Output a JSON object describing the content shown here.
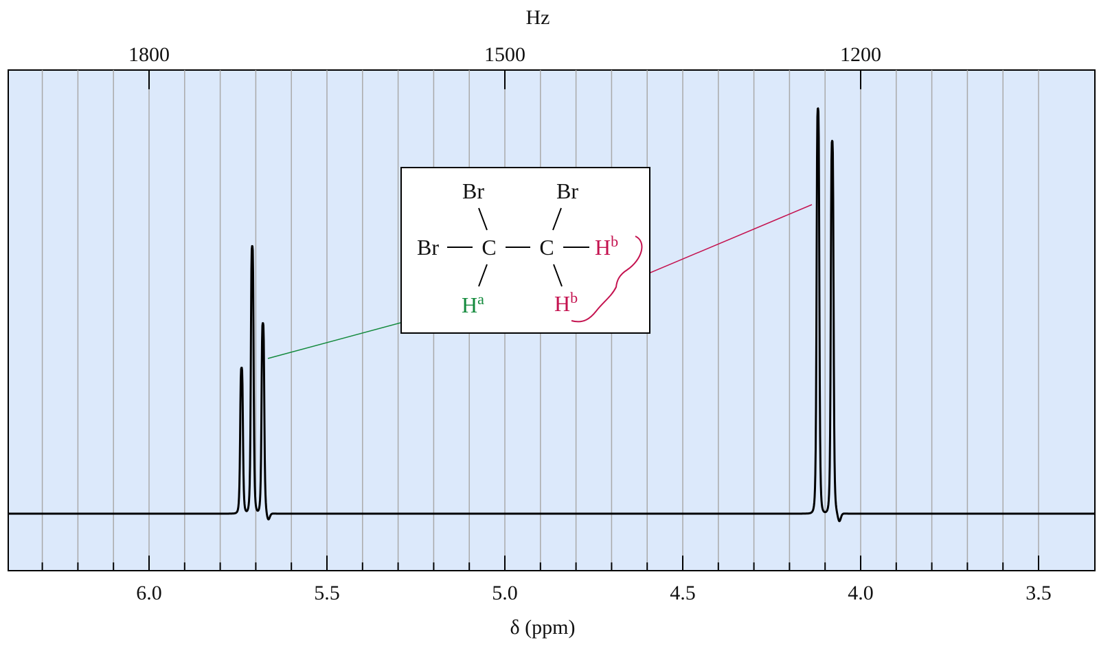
{
  "chart_data": {
    "type": "line",
    "title": "",
    "xlabel": "δ (ppm)",
    "x2label": "Hz",
    "xlim": [
      6.4,
      3.42
    ],
    "x_reversed": true,
    "bottom_ticks": [
      "6.0",
      "5.5",
      "5.0",
      "4.5",
      "4.0",
      "3.5"
    ],
    "bottom_tick_values": [
      6.0,
      5.5,
      5.0,
      4.5,
      4.0,
      3.5
    ],
    "minor_step_ppm": 0.1,
    "top_ticks": [
      "1800",
      "1500",
      "1200"
    ],
    "top_tick_ppm": [
      6.0,
      5.0,
      4.0
    ],
    "grid": true,
    "background_color": "#dce9fb",
    "grid_color": "#a9a9a9",
    "spectrum_color": "#000000",
    "peaks": [
      {
        "group": "a",
        "ppm": 5.74,
        "intensity": 0.36
      },
      {
        "group": "a",
        "ppm": 5.71,
        "intensity": 0.66
      },
      {
        "group": "a",
        "ppm": 5.68,
        "intensity": 0.47
      },
      {
        "group": "b",
        "ppm": 4.12,
        "intensity": 1.0
      },
      {
        "group": "b",
        "ppm": 4.08,
        "intensity": 0.92
      }
    ],
    "molecule": {
      "atoms": [
        "Br",
        "Br",
        "Br",
        "Br",
        "C",
        "C"
      ],
      "ha_label": {
        "base": "H",
        "sup": "a",
        "color": "#138a3c"
      },
      "hb_label": {
        "base": "H",
        "sup": "b",
        "color": "#c4124f"
      }
    }
  }
}
